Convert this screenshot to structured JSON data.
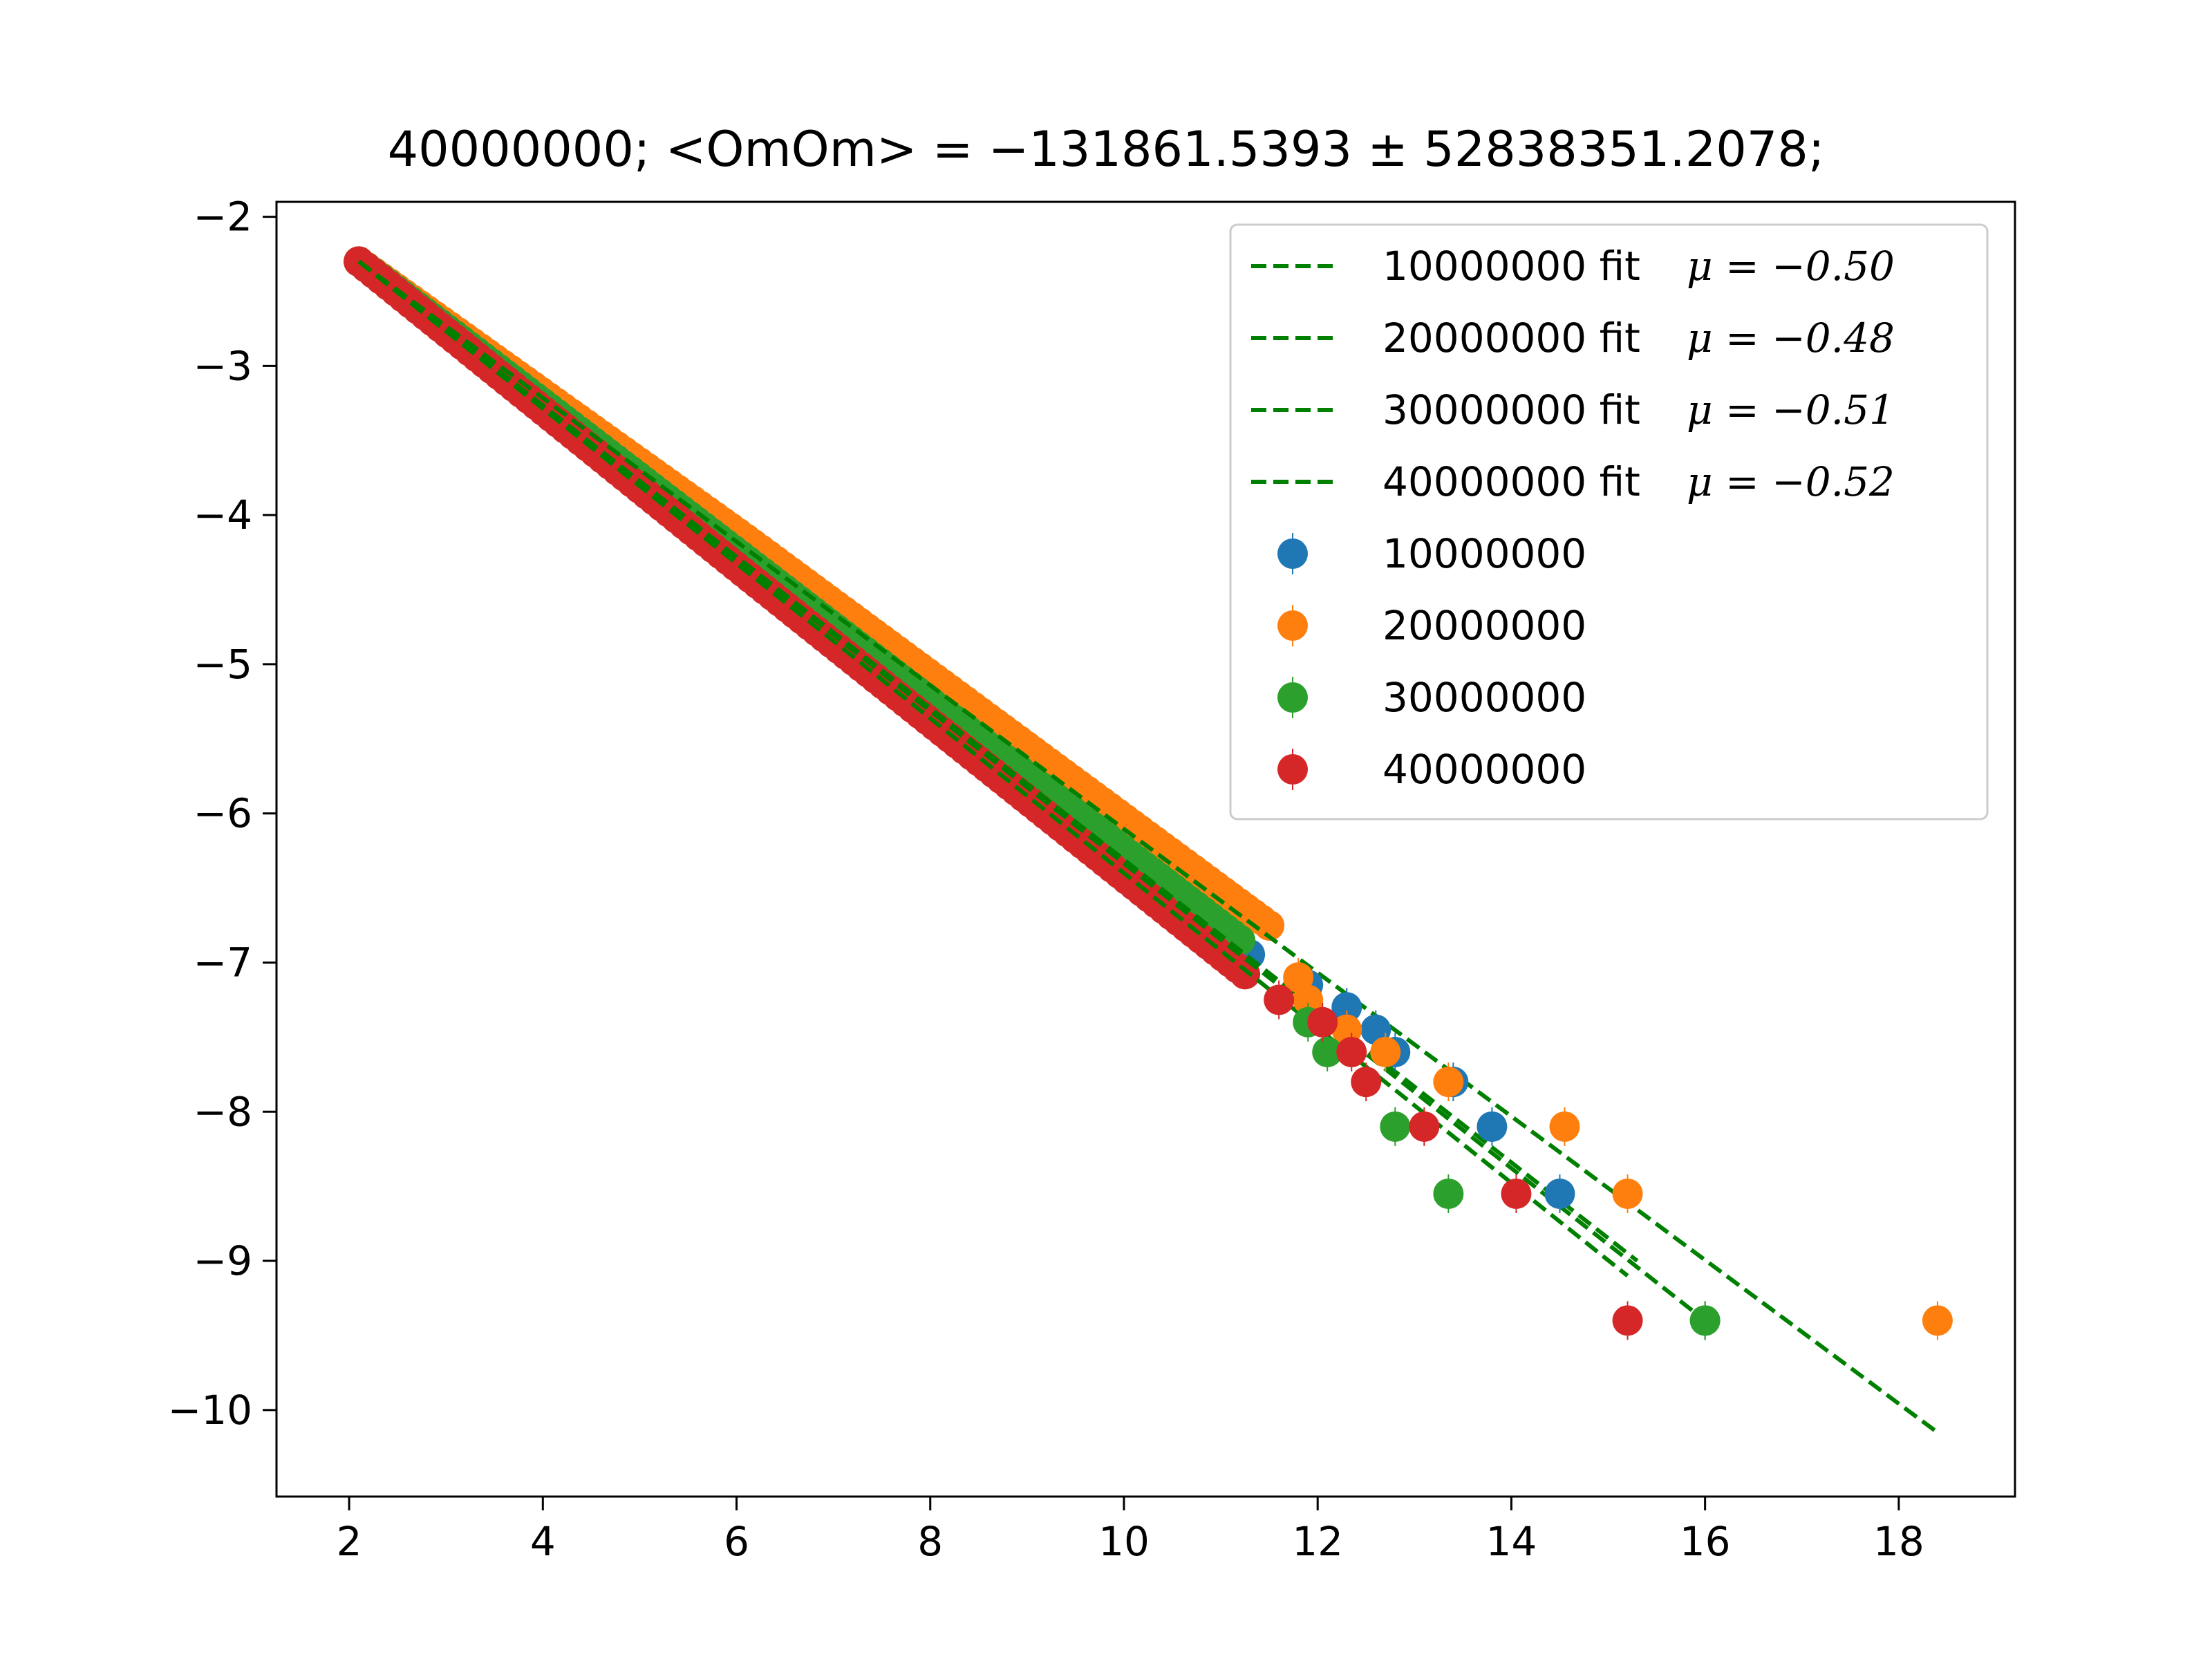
{
  "chart_data": {
    "type": "scatter",
    "title": "40000000; <OmOm> = −131861.5393 ± 52838351.2078;",
    "xlabel": "",
    "ylabel": "",
    "xlim": [
      1.25,
      19.2
    ],
    "ylim": [
      -10.58,
      -1.9
    ],
    "xticks": [
      2,
      4,
      6,
      8,
      10,
      12,
      14,
      16,
      18
    ],
    "yticks": [
      -2,
      -3,
      -4,
      -5,
      -6,
      -7,
      -8,
      -9,
      -10
    ],
    "tick_labels_x": [
      "2",
      "4",
      "6",
      "8",
      "10",
      "12",
      "14",
      "16",
      "18"
    ],
    "tick_labels_y": [
      "−2",
      "−3",
      "−4",
      "−5",
      "−6",
      "−7",
      "−8",
      "−9",
      "−10"
    ],
    "grid": false,
    "legend_position": "top-right",
    "fits": [
      {
        "name": "10000000 fit",
        "mu_label": "μ = −0.50",
        "mu": -0.5,
        "x": [
          2.1,
          15.3
        ],
        "y": [
          -2.3,
          -9.0
        ],
        "color": "#008000"
      },
      {
        "name": "20000000 fit",
        "mu_label": "μ = −0.48",
        "mu": -0.48,
        "x": [
          2.1,
          18.4
        ],
        "y": [
          -2.3,
          -10.15
        ],
        "color": "#008000"
      },
      {
        "name": "30000000 fit",
        "mu_label": "μ = −0.51",
        "mu": -0.51,
        "x": [
          2.1,
          16.0
        ],
        "y": [
          -2.3,
          -9.4
        ],
        "color": "#008000"
      },
      {
        "name": "40000000 fit",
        "mu_label": "μ = −0.52",
        "mu": -0.52,
        "x": [
          2.1,
          15.2
        ],
        "y": [
          -2.3,
          -9.1
        ],
        "color": "#008000"
      }
    ],
    "series": [
      {
        "name": "10000000",
        "color": "#1f77b4",
        "main_line": {
          "x0": 2.1,
          "x1": 11.3,
          "slope": -0.505
        },
        "tail": [
          [
            11.9,
            -7.15
          ],
          [
            12.3,
            -7.3
          ],
          [
            12.6,
            -7.45
          ],
          [
            12.8,
            -7.6
          ],
          [
            13.4,
            -7.8
          ],
          [
            13.8,
            -8.1
          ],
          [
            14.5,
            -8.55
          ],
          [
            16.0,
            -9.4
          ]
        ]
      },
      {
        "name": "20000000",
        "color": "#ff7f0e",
        "main_line": {
          "x0": 2.1,
          "x1": 11.5,
          "slope": -0.48
        },
        "tail": [
          [
            11.8,
            -7.1
          ],
          [
            11.9,
            -7.25
          ],
          [
            12.3,
            -7.45
          ],
          [
            12.7,
            -7.6
          ],
          [
            13.35,
            -7.8
          ],
          [
            14.55,
            -8.1
          ],
          [
            15.2,
            -8.55
          ],
          [
            18.4,
            -9.4
          ]
        ]
      },
      {
        "name": "30000000",
        "color": "#2ca02c",
        "main_line": {
          "x0": 2.1,
          "x1": 11.2,
          "slope": -0.5
        },
        "tail": [
          [
            11.9,
            -7.4
          ],
          [
            12.1,
            -7.6
          ],
          [
            12.8,
            -8.1
          ],
          [
            13.35,
            -8.55
          ],
          [
            16.0,
            -9.4
          ]
        ]
      },
      {
        "name": "40000000",
        "color": "#d62728",
        "main_line": {
          "x0": 2.1,
          "x1": 11.25,
          "slope": -0.52
        },
        "tail": [
          [
            11.6,
            -7.25
          ],
          [
            12.05,
            -7.4
          ],
          [
            12.35,
            -7.6
          ],
          [
            12.5,
            -7.8
          ],
          [
            13.1,
            -8.1
          ],
          [
            14.05,
            -8.55
          ],
          [
            15.2,
            -9.4
          ]
        ]
      }
    ]
  }
}
